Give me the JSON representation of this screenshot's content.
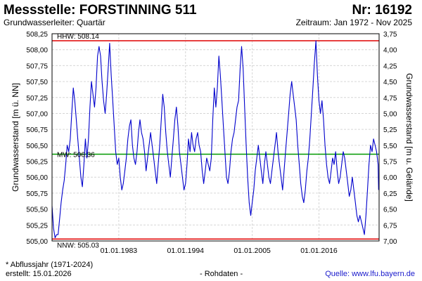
{
  "header": {
    "title": "Messstelle: FORSTINNING 511",
    "number": "Nr: 16192",
    "aquifer": "Grundwasserleiter: Quartär",
    "period": "Zeitraum: Jan 1972 - Nov 2025"
  },
  "footer": {
    "note": "* Abflussjahr (1971-2024)",
    "created": "erstellt:  15.01.2026",
    "raw": "- Rohdaten -",
    "source": "Quelle:  www.lfu.bayern.de"
  },
  "colors": {
    "series": "#0000cc",
    "hhw": "#e00000",
    "nnw": "#e00000",
    "mw": "#009900",
    "grid": "#d6d6d6",
    "source_link": "#1a1acc"
  },
  "chart_data": {
    "type": "line",
    "ylabel": "Grundwasserstand [m ü. NN]",
    "ylabel_right": "Grundwasserstand [m u. Gelände]",
    "ylim": [
      505.0,
      508.25
    ],
    "ylim_right": [
      7.0,
      3.75
    ],
    "x_range": [
      "1972-01-01",
      "2025-11-30"
    ],
    "grid": true,
    "y_ticks": [
      "505,00",
      "505,25",
      "505,50",
      "505,75",
      "506,00",
      "506,25",
      "506,50",
      "506,75",
      "507,00",
      "507,25",
      "507,50",
      "507,75",
      "508,00",
      "508,25"
    ],
    "y_ticks_right": [
      "7,00",
      "6,75",
      "6,50",
      "6,25",
      "6,00",
      "5,75",
      "5,50",
      "5,25",
      "5,00",
      "4,75",
      "4,50",
      "4,25",
      "4,00",
      "3,75"
    ],
    "x_ticks": [
      {
        "label": "01.01.1983",
        "date": "1983-01-01"
      },
      {
        "label": "01.01.1994",
        "date": "1994-01-01"
      },
      {
        "label": "01.01.2005",
        "date": "2005-01-01"
      },
      {
        "label": "01.01.2016",
        "date": "2016-01-01"
      }
    ],
    "reference_lines": [
      {
        "name": "HHW",
        "label": "HHW: 508.14",
        "value": 508.14,
        "color": "#e00000"
      },
      {
        "name": "MW",
        "label": "MW: 506.36",
        "value": 506.36,
        "color": "#009900"
      },
      {
        "name": "NNW",
        "label": "NNW: 505.03",
        "value": 505.03,
        "color": "#e00000"
      }
    ],
    "series": [
      {
        "x": [
          "1972-01",
          "1972-04",
          "1972-07",
          "1972-10",
          "1973-01",
          "1973-04",
          "1973-07",
          "1973-10",
          "1974-01",
          "1974-04",
          "1974-07",
          "1974-10",
          "1975-01",
          "1975-04",
          "1975-07",
          "1975-10",
          "1976-01",
          "1976-04",
          "1976-07",
          "1976-10",
          "1977-01",
          "1977-04",
          "1977-07",
          "1977-10",
          "1978-01",
          "1978-04",
          "1978-07",
          "1978-10",
          "1979-01",
          "1979-04",
          "1979-07",
          "1979-10",
          "1980-01",
          "1980-04",
          "1980-07",
          "1980-10",
          "1981-01",
          "1981-04",
          "1981-07",
          "1981-10",
          "1982-01",
          "1982-04",
          "1982-07",
          "1982-10",
          "1983-01",
          "1983-04",
          "1983-07",
          "1983-10",
          "1984-01",
          "1984-04",
          "1984-07",
          "1984-10",
          "1985-01",
          "1985-04",
          "1985-07",
          "1985-10",
          "1986-01",
          "1986-04",
          "1986-07",
          "1986-10",
          "1987-01",
          "1987-04",
          "1987-07",
          "1987-10",
          "1988-01",
          "1988-04",
          "1988-07",
          "1988-10",
          "1989-01",
          "1989-04",
          "1989-07",
          "1989-10",
          "1990-01",
          "1990-04",
          "1990-07",
          "1990-10",
          "1991-01",
          "1991-04",
          "1991-07",
          "1991-10",
          "1992-01",
          "1992-04",
          "1992-07",
          "1992-10",
          "1993-01",
          "1993-04",
          "1993-07",
          "1993-10",
          "1994-01",
          "1994-04",
          "1994-07",
          "1994-10",
          "1995-01",
          "1995-04",
          "1995-07",
          "1995-10",
          "1996-01",
          "1996-04",
          "1996-07",
          "1996-10",
          "1997-01",
          "1997-04",
          "1997-07",
          "1997-10",
          "1998-01",
          "1998-04",
          "1998-07",
          "1998-10",
          "1999-01",
          "1999-04",
          "1999-07",
          "1999-10",
          "2000-01",
          "2000-04",
          "2000-07",
          "2000-10",
          "2001-01",
          "2001-04",
          "2001-07",
          "2001-10",
          "2002-01",
          "2002-04",
          "2002-07",
          "2002-10",
          "2003-01",
          "2003-04",
          "2003-07",
          "2003-10",
          "2004-01",
          "2004-04",
          "2004-07",
          "2004-10",
          "2005-01",
          "2005-04",
          "2005-07",
          "2005-10",
          "2006-01",
          "2006-04",
          "2006-07",
          "2006-10",
          "2007-01",
          "2007-04",
          "2007-07",
          "2007-10",
          "2008-01",
          "2008-04",
          "2008-07",
          "2008-10",
          "2009-01",
          "2009-04",
          "2009-07",
          "2009-10",
          "2010-01",
          "2010-04",
          "2010-07",
          "2010-10",
          "2011-01",
          "2011-04",
          "2011-07",
          "2011-10",
          "2012-01",
          "2012-04",
          "2012-07",
          "2012-10",
          "2013-01",
          "2013-04",
          "2013-07",
          "2013-10",
          "2014-01",
          "2014-04",
          "2014-07",
          "2014-10",
          "2015-01",
          "2015-04",
          "2015-07",
          "2015-10",
          "2016-01",
          "2016-04",
          "2016-07",
          "2016-10",
          "2017-01",
          "2017-04",
          "2017-07",
          "2017-10",
          "2018-01",
          "2018-04",
          "2018-07",
          "2018-10",
          "2019-01",
          "2019-04",
          "2019-07",
          "2019-10",
          "2020-01",
          "2020-04",
          "2020-07",
          "2020-10",
          "2021-01",
          "2021-04",
          "2021-07",
          "2021-10",
          "2022-01",
          "2022-04",
          "2022-07",
          "2022-10",
          "2023-01",
          "2023-04",
          "2023-07",
          "2023-10",
          "2024-01",
          "2024-04",
          "2024-07",
          "2024-10",
          "2025-01",
          "2025-04",
          "2025-07",
          "2025-10",
          "2025-11"
        ],
        "y": [
          505.55,
          505.2,
          505.05,
          505.1,
          505.1,
          505.35,
          505.6,
          505.8,
          505.95,
          506.2,
          506.5,
          506.4,
          506.6,
          507.0,
          507.4,
          507.2,
          506.9,
          506.6,
          506.3,
          506.0,
          505.85,
          506.2,
          506.6,
          506.3,
          506.6,
          507.1,
          507.5,
          507.3,
          507.1,
          507.4,
          507.9,
          508.05,
          507.9,
          507.5,
          507.2,
          507.0,
          507.3,
          507.7,
          508.1,
          507.6,
          507.2,
          506.8,
          506.4,
          506.2,
          506.3,
          506.0,
          505.8,
          505.9,
          506.1,
          506.3,
          506.6,
          506.8,
          506.9,
          506.5,
          506.3,
          506.2,
          506.4,
          506.7,
          506.9,
          506.7,
          506.6,
          506.4,
          506.1,
          506.3,
          506.5,
          506.7,
          506.5,
          506.3,
          506.1,
          505.9,
          506.2,
          506.5,
          506.9,
          507.3,
          507.1,
          506.7,
          506.4,
          506.2,
          506.0,
          506.3,
          506.6,
          506.9,
          507.1,
          506.8,
          506.4,
          506.2,
          506.0,
          505.8,
          505.9,
          506.2,
          506.6,
          506.4,
          506.7,
          506.5,
          506.4,
          506.6,
          506.7,
          506.5,
          506.4,
          506.1,
          505.9,
          506.1,
          506.3,
          506.2,
          506.1,
          506.3,
          506.9,
          507.4,
          507.1,
          507.4,
          507.9,
          507.6,
          507.2,
          506.8,
          506.4,
          506.0,
          505.9,
          506.1,
          506.4,
          506.6,
          506.7,
          506.9,
          507.1,
          507.2,
          507.7,
          508.05,
          507.7,
          507.1,
          506.5,
          506.0,
          505.6,
          505.4,
          505.6,
          505.8,
          506.1,
          506.3,
          506.5,
          506.3,
          506.1,
          505.9,
          506.2,
          506.4,
          506.2,
          506.0,
          505.9,
          506.1,
          506.3,
          506.5,
          506.7,
          506.4,
          506.2,
          506.0,
          505.8,
          506.1,
          506.4,
          506.7,
          507.0,
          507.3,
          507.5,
          507.3,
          507.1,
          506.9,
          506.5,
          506.2,
          505.9,
          505.7,
          505.6,
          505.8,
          506.1,
          506.3,
          506.6,
          507.0,
          507.4,
          507.8,
          508.14,
          507.6,
          507.2,
          507.0,
          507.2,
          506.9,
          506.5,
          506.2,
          506.0,
          505.9,
          506.1,
          506.3,
          506.2,
          506.4,
          506.1,
          505.9,
          506.0,
          506.2,
          506.4,
          506.3,
          506.1,
          505.9,
          505.7,
          505.8,
          506.0,
          505.8,
          505.6,
          505.4,
          505.3,
          505.4,
          505.3,
          505.2,
          505.1,
          505.4,
          505.8,
          506.2,
          506.5,
          506.4,
          506.6,
          506.5,
          506.4,
          506.2,
          505.8
        ]
      }
    ]
  }
}
